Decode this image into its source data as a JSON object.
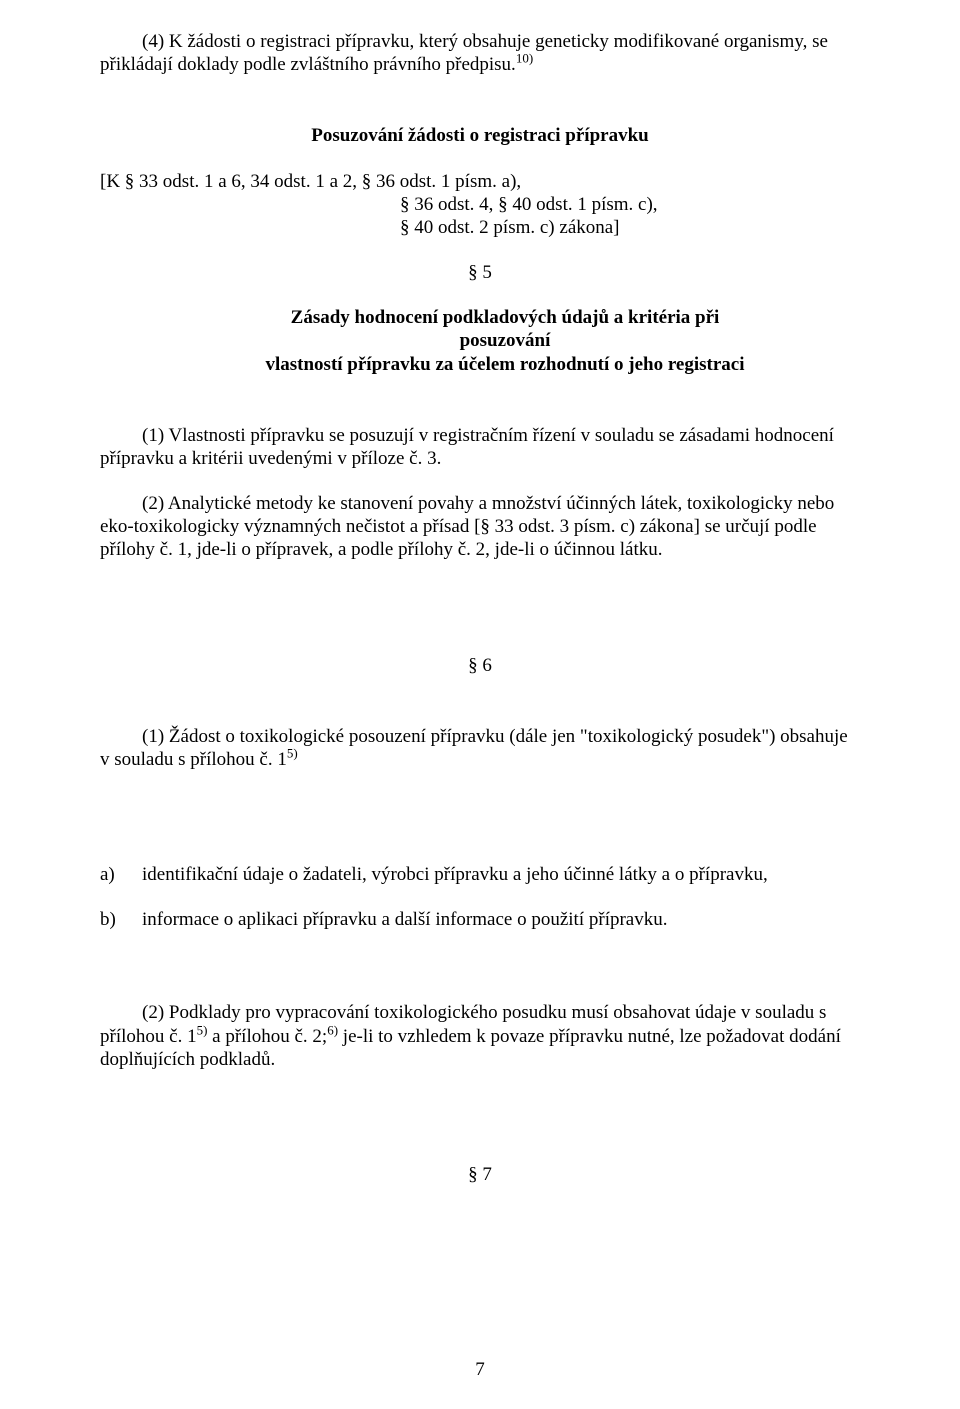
{
  "p4_text_a": "(4) K žádosti o registraci přípravku, který obsahuje geneticky modifikované organismy, se přikládají doklady podle zvláštního právního předpisu.",
  "p4_sup": "10)",
  "h_posuz": "Posuzování žádosti o registraci přípravku",
  "ref_line1": "[K § 33 odst. 1 a 6, 34 odst. 1 a 2, § 36 odst. 1 písm. a),",
  "ref_line2": "§ 36 odst. 4, § 40 odst. 1 písm. c),",
  "ref_line3": "§ 40 odst. 2 písm. c) zákona]",
  "section5": "§ 5",
  "zasady_l1": "Zásady hodnocení podkladových údajů a kritéria při posuzování",
  "zasady_l2": "vlastností přípravku za účelem rozhodnutí o jeho registraci",
  "s5_p1": "(1) Vlastnosti přípravku se posuzují v registračním řízení v souladu se zásadami hodnocení přípravku a kritérii uvedenými v příloze č. 3.",
  "s5_p2": "(2) Analytické metody ke stanovení povahy a množství účinných látek, toxikologicky nebo eko-toxikologicky významných nečistot a přísad [§ 33 odst. 3 písm. c) zákona] se určují podle přílohy č. 1, jde-li o přípravek, a podle přílohy č. 2, jde-li o účinnou látku.",
  "section6": "§ 6",
  "s6_p1_a": "(1) Žádost o toxikologické posouzení přípravku (dále jen \"toxikologický posudek\") obsahuje v souladu s přílohou č. 1",
  "s6_p1_sup": "5)",
  "list_a_label": "a)",
  "list_a_text": "identifikační údaje o žadateli, výrobci přípravku a jeho účinné látky a o přípravku,",
  "list_b_label": "b)",
  "list_b_text": "informace o aplikaci přípravku a další informace o použití přípravku.",
  "s6_p2_a": "(2) Podklady pro vypracování toxikologického posudku musí obsahovat údaje v souladu s přílohou č. 1",
  "s6_p2_sup1": "5)",
  "s6_p2_b": " a přílohou č. 2;",
  "s6_p2_sup2": "6)",
  "s6_p2_c": " je-li to vzhledem k povaze přípravku nutné, lze požadovat dodání doplňujících podkladů.",
  "section7": "§ 7",
  "page_number": "7"
}
